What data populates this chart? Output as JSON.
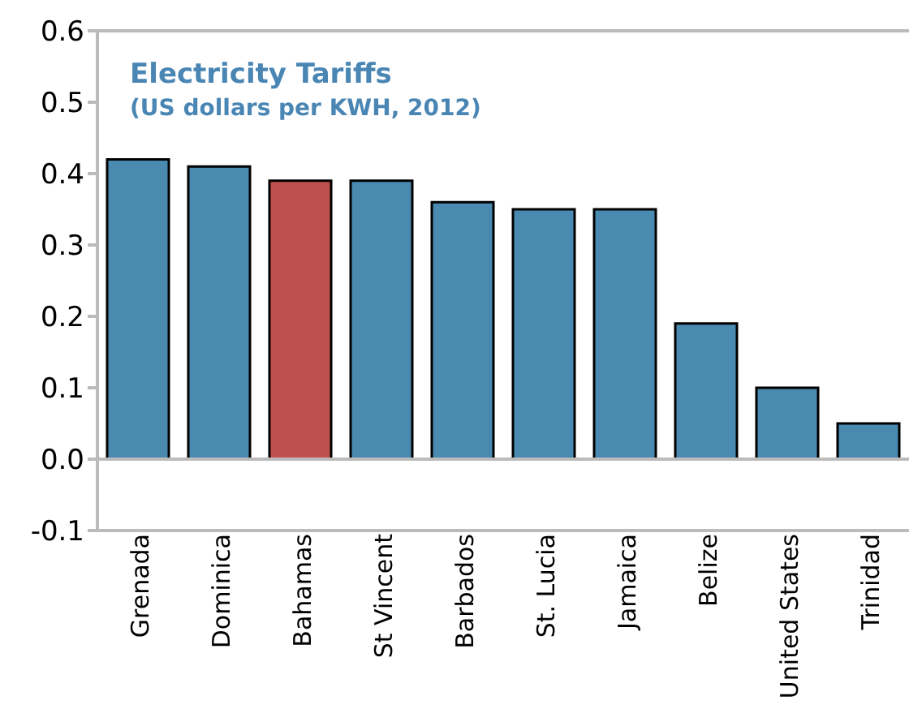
{
  "chart_data": {
    "type": "bar",
    "title": "Electricity Tariffs",
    "subtitle": "(US dollars per KWH, 2012)",
    "categories": [
      "Grenada",
      "Dominica",
      "Bahamas",
      "St Vincent",
      "Barbados",
      "St. Lucia",
      "Jamaica",
      "Belize",
      "United States",
      "Trinidad"
    ],
    "values": [
      0.42,
      0.41,
      0.39,
      0.39,
      0.36,
      0.35,
      0.35,
      0.19,
      0.1,
      0.05
    ],
    "colors": [
      "#4a8ab0",
      "#4a8ab0",
      "#c0504d",
      "#4a8ab0",
      "#4a8ab0",
      "#4a8ab0",
      "#4a8ab0",
      "#4a8ab0",
      "#4a8ab0",
      "#4a8ab0"
    ],
    "ylim": [
      -0.1,
      0.6
    ],
    "yticks": [
      {
        "value": -0.1,
        "label": "-0.1"
      },
      {
        "value": 0,
        "label": "0.0"
      },
      {
        "value": 0.1,
        "label": "0.1"
      },
      {
        "value": 0.2,
        "label": "0.2"
      },
      {
        "value": 0.3,
        "label": "0.3"
      },
      {
        "value": 0.4,
        "label": "0.4"
      },
      {
        "value": 0.5,
        "label": "0.5"
      },
      {
        "value": 0.6,
        "label": "0.6"
      }
    ],
    "legend": false
  }
}
